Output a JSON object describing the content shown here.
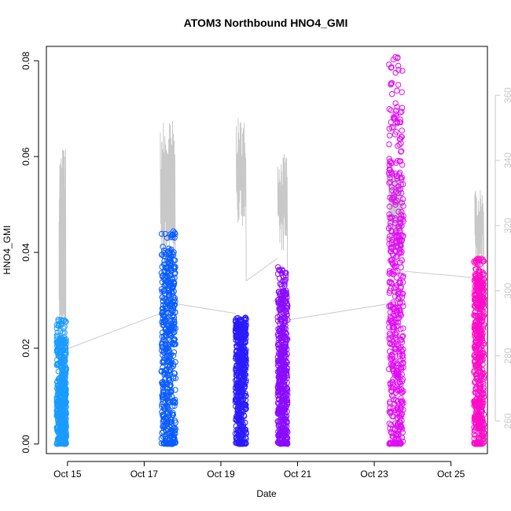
{
  "chart_data": {
    "type": "scatter",
    "title": "ATOM3 Northbound HNO4_GMI",
    "xlabel": "Date",
    "ylabel": "HNO4_GMI",
    "x_tick_labels": [
      "Oct 15",
      "Oct 17",
      "Oct 19",
      "Oct 21",
      "Oct 23",
      "Oct 25"
    ],
    "x_ticks_day": [
      15,
      17,
      19,
      21,
      23,
      25
    ],
    "xlim_day": [
      14.45,
      25.95
    ],
    "ylim": [
      -0.002,
      0.083
    ],
    "y_tick_labels": [
      "0.00",
      "0.02",
      "0.04",
      "0.06",
      "0.08"
    ],
    "y_ticks": [
      0.0,
      0.02,
      0.04,
      0.06,
      0.08
    ],
    "y2_tick_labels": [
      "260",
      "280",
      "300",
      "320",
      "340",
      "360"
    ],
    "y2_ticks": [
      260,
      280,
      300,
      320,
      340,
      360
    ],
    "y2lim": [
      250,
      375
    ],
    "grid": false,
    "legend": "none",
    "background_series": {
      "color": "#c8c8c8",
      "flights": [
        {
          "start": 14.78,
          "end": 14.96,
          "base": 292,
          "peak": 345,
          "end_value": 282
        },
        {
          "start": 17.42,
          "end": 17.82,
          "base": 316,
          "peak": 353,
          "end_value": 296
        },
        {
          "start": 19.4,
          "end": 19.66,
          "base": 326,
          "peak": 353,
          "end_value": 303
        },
        {
          "start": 20.48,
          "end": 20.74,
          "base": 318,
          "peak": 342,
          "end_value": 291
        },
        {
          "start": 23.38,
          "end": 23.76,
          "base": 316,
          "peak": 339,
          "end_value": 306
        },
        {
          "start": 25.62,
          "end": 25.86,
          "base": 312,
          "peak": 331,
          "end_value": 302
        }
      ],
      "connections": [
        {
          "x": [
            14.96,
            17.42
          ],
          "y": [
            282,
            293
          ]
        },
        {
          "x": [
            17.82,
            19.4
          ],
          "y": [
            296,
            293
          ]
        },
        {
          "x": [
            19.66,
            20.48
          ],
          "y": [
            303,
            310
          ]
        },
        {
          "x": [
            20.74,
            23.38
          ],
          "y": [
            291,
            296
          ]
        },
        {
          "x": [
            23.76,
            25.62
          ],
          "y": [
            306,
            304
          ]
        }
      ]
    },
    "series": [
      {
        "color": "#1a9bff",
        "x_range": [
          14.72,
          14.97
        ],
        "y_max": 0.026,
        "dense_max": 0.014
      },
      {
        "color": "#0a5cff",
        "x_range": [
          17.45,
          17.82
        ],
        "y_max": 0.0445,
        "dense_max": 0.03
      },
      {
        "color": "#2a1cff",
        "x_range": [
          19.38,
          19.66
        ],
        "y_max": 0.0265,
        "dense_max": 0.022
      },
      {
        "color": "#8a0cff",
        "x_range": [
          20.48,
          20.74
        ],
        "y_max": 0.037,
        "dense_max": 0.021
      },
      {
        "color": "#e20cf6",
        "x_range": [
          23.38,
          23.76
        ],
        "y_max": 0.081,
        "dense_max": 0.045
      },
      {
        "color": "#ff0cc8",
        "x_range": [
          25.6,
          25.86
        ],
        "y_max": 0.039,
        "dense_max": 0.027
      }
    ]
  }
}
